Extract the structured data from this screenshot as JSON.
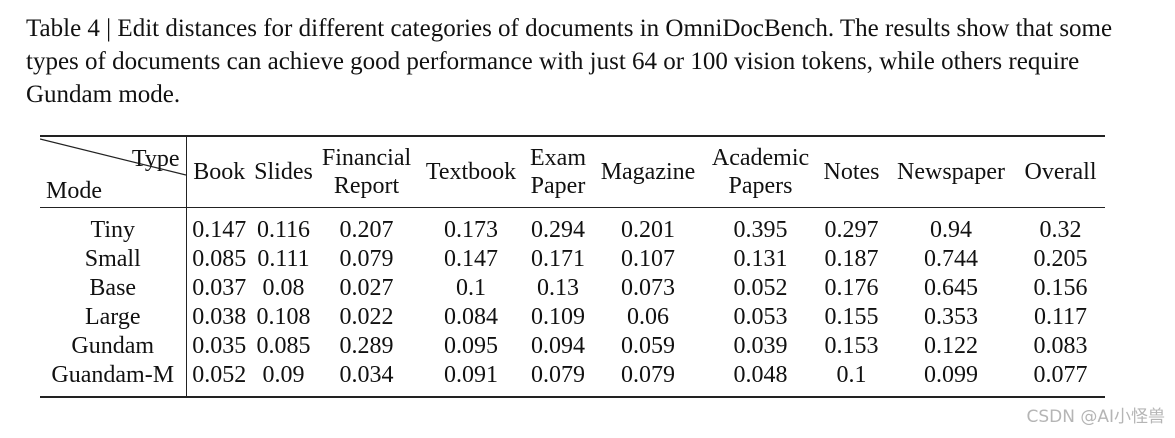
{
  "caption": "Table 4 | Edit distances for different categories of documents in OmniDocBench. The results show that some types of documents can achieve good performance with just 64 or 100 vision tokens, while others require Gundam mode.",
  "table": {
    "corner": {
      "column_label": "Type",
      "row_label": "Mode"
    },
    "columns": [
      "Book",
      "Slides",
      "Financial Report",
      "Textbook",
      "Exam Paper",
      "Magazine",
      "Academic Papers",
      "Notes",
      "Newspaper",
      "Overall"
    ],
    "rows": [
      {
        "mode": "Tiny",
        "values": [
          0.147,
          0.116,
          0.207,
          0.173,
          0.294,
          0.201,
          0.395,
          0.297,
          0.94,
          0.32
        ]
      },
      {
        "mode": "Small",
        "values": [
          0.085,
          0.111,
          0.079,
          0.147,
          0.171,
          0.107,
          0.131,
          0.187,
          0.744,
          0.205
        ]
      },
      {
        "mode": "Base",
        "values": [
          0.037,
          0.08,
          0.027,
          0.1,
          0.13,
          0.073,
          0.052,
          0.176,
          0.645,
          0.156
        ]
      },
      {
        "mode": "Large",
        "values": [
          0.038,
          0.108,
          0.022,
          0.084,
          0.109,
          0.06,
          0.053,
          0.155,
          0.353,
          0.117
        ]
      },
      {
        "mode": "Gundam",
        "values": [
          0.035,
          0.085,
          0.289,
          0.095,
          0.094,
          0.059,
          0.039,
          0.153,
          0.122,
          0.083
        ]
      },
      {
        "mode": "Guandam-M",
        "values": [
          0.052,
          0.09,
          0.034,
          0.091,
          0.079,
          0.079,
          0.048,
          0.1,
          0.099,
          0.077
        ]
      }
    ]
  },
  "watermark": "CSDN @AI小怪兽"
}
